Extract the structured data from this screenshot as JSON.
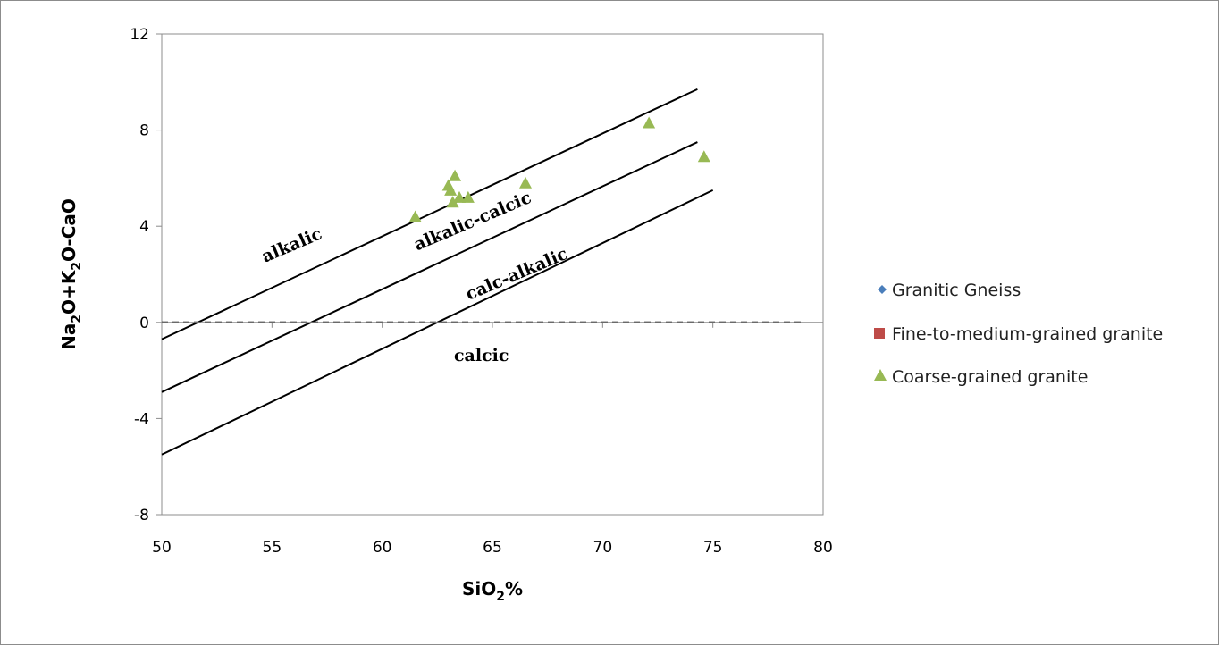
{
  "chart_data": {
    "type": "scatter",
    "title": "",
    "xlabel_main": "SiO",
    "xlabel_sub": "2",
    "xlabel_suffix": "%",
    "ylabel_parts": [
      "Na",
      "2",
      "O+K",
      "2",
      "O-CaO"
    ],
    "xlim": [
      50,
      80
    ],
    "ylim": [
      -8,
      12
    ],
    "x_ticks": [
      50,
      55,
      60,
      65,
      70,
      75,
      80
    ],
    "y_ticks": [
      -8,
      -4,
      0,
      4,
      8,
      12
    ],
    "grid": false,
    "legend_position": "right",
    "series": [
      {
        "name": "Granitic Gneiss",
        "marker": "diamond",
        "color": "#4a7ebb",
        "points": []
      },
      {
        "name": "Fine-to-medium-grained granite",
        "marker": "square",
        "color": "#be4b48",
        "points": []
      },
      {
        "name": "Coarse-grained granite",
        "marker": "triangle",
        "color": "#98b954",
        "points": [
          [
            61.5,
            4.4
          ],
          [
            63.0,
            5.7
          ],
          [
            63.1,
            5.5
          ],
          [
            63.3,
            6.1
          ],
          [
            63.2,
            5.0
          ],
          [
            63.5,
            5.2
          ],
          [
            63.9,
            5.2
          ],
          [
            66.5,
            5.8
          ],
          [
            72.1,
            8.3
          ],
          [
            74.6,
            6.9
          ]
        ]
      }
    ],
    "boundary_lines": [
      {
        "name": "alkalic-upper",
        "points": [
          [
            50,
            -0.7
          ],
          [
            74.3,
            9.7
          ]
        ]
      },
      {
        "name": "alkalic-calcic-upper",
        "points": [
          [
            50,
            -2.9
          ],
          [
            74.3,
            7.5
          ]
        ]
      },
      {
        "name": "calc-alkalic-upper",
        "points": [
          [
            50,
            -5.5
          ],
          [
            75.0,
            5.5
          ]
        ]
      }
    ],
    "reference_line": {
      "y": 0,
      "style": "dashed",
      "x_range": [
        50,
        79
      ]
    },
    "region_labels": [
      {
        "text": "alkalic",
        "x": 56.0,
        "y": 3.0,
        "angle": -23
      },
      {
        "text": "alkalic-calcic",
        "x": 64.2,
        "y": 4.0,
        "angle": -23
      },
      {
        "text": "calc-alkalic",
        "x": 66.2,
        "y": 1.8,
        "angle": -23
      },
      {
        "text": "calcic",
        "x": 64.5,
        "y": -1.6,
        "angle": 0
      }
    ]
  }
}
